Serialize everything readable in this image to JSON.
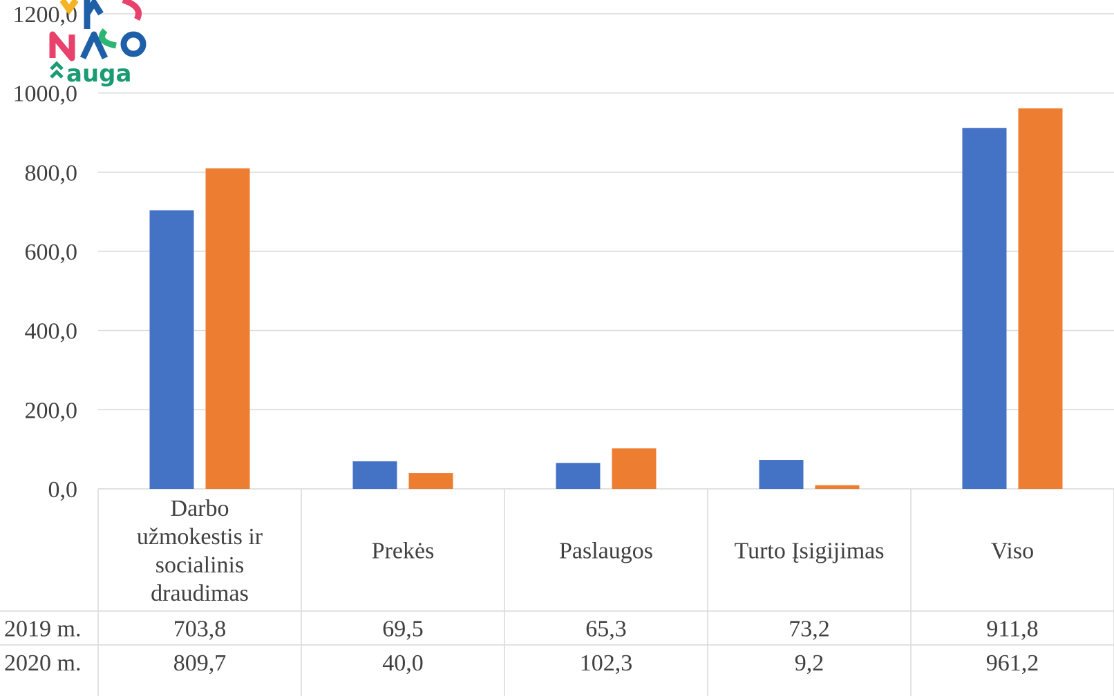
{
  "chart_data": {
    "type": "bar",
    "categories": [
      [
        "Darbo",
        "užmokestis ir",
        "socialinis",
        "draudimas"
      ],
      [
        "Prekės"
      ],
      [
        "Paslaugos"
      ],
      [
        "Turto Įsigijimas"
      ],
      [
        "Viso"
      ]
    ],
    "series": [
      {
        "name": "2019 m.",
        "color": "#4472C4",
        "values": [
          703.8,
          69.5,
          65.3,
          73.2,
          911.8
        ]
      },
      {
        "name": "2020 m.",
        "color": "#ED7D31",
        "values": [
          809.7,
          40.0,
          102.3,
          9.2,
          961.2
        ]
      }
    ],
    "y_ticks": [
      "0,0",
      "200,0",
      "400,0",
      "600,0",
      "800,0",
      "1000,0",
      "1200,0"
    ],
    "ylim": [
      0,
      1200
    ],
    "grid": true,
    "legend": "data table below chart",
    "table_rows": [
      {
        "label": "2019 m.",
        "cells": [
          "703,8",
          "69,5",
          "65,3",
          "73,2",
          "911,8"
        ]
      },
      {
        "label": "2020 m.",
        "cells": [
          "809,7",
          "40,0",
          "102,3",
          "9,2",
          "961,2"
        ]
      }
    ]
  },
  "logo": {
    "name": "kaunas-auga-logo",
    "text": "auga"
  }
}
